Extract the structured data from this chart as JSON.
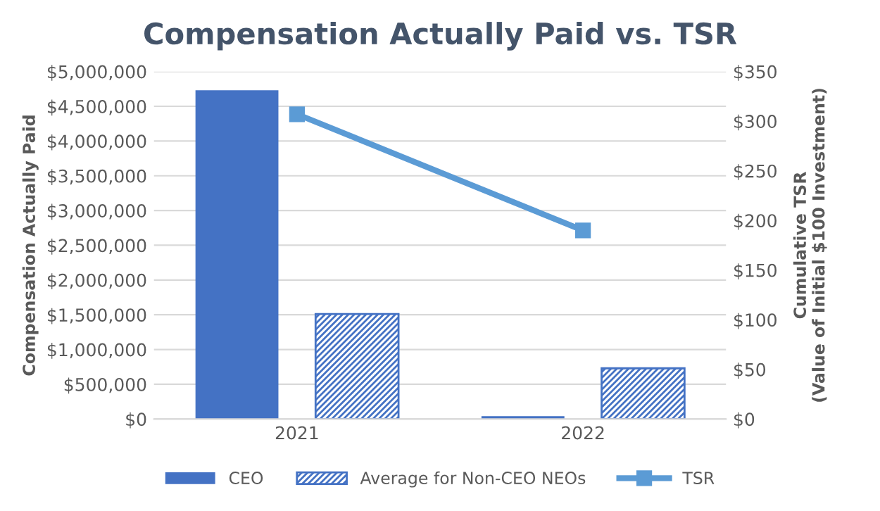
{
  "chart_data": {
    "type": "bar",
    "title": "Compensation Actually Paid vs. TSR",
    "ylabel": "Compensation Actually Paid",
    "y2label": "Cumulative TSR\n(Value of Initial $100 Investment)",
    "categories": [
      "2021",
      "2022"
    ],
    "series": [
      {
        "name": "CEO",
        "color": "#4472c4",
        "values": [
          4730000,
          40000
        ]
      },
      {
        "name": "Average for Non-CEO NEOs",
        "color": "#4472c4",
        "values": [
          1510000,
          730000
        ]
      },
      {
        "name": "TSR",
        "type": "line",
        "axis": "y2",
        "color": "#5b9bd5",
        "values": [
          307,
          190
        ],
        "marker": "square"
      }
    ],
    "ylim": [
      0,
      5000000
    ],
    "yticks": [
      {
        "value": 0,
        "label": "$0"
      },
      {
        "value": 500000,
        "label": "$500,000"
      },
      {
        "value": 1000000,
        "label": "$1,000,000"
      },
      {
        "value": 1500000,
        "label": "$1,500,000"
      },
      {
        "value": 2000000,
        "label": "$2,000,000"
      },
      {
        "value": 2500000,
        "label": "$2,500,000"
      },
      {
        "value": 3000000,
        "label": "$3,000,000"
      },
      {
        "value": 3500000,
        "label": "$3,500,000"
      },
      {
        "value": 4000000,
        "label": "$4,000,000"
      },
      {
        "value": 4500000,
        "label": "$4,500,000"
      },
      {
        "value": 5000000,
        "label": "$5,000,000"
      }
    ],
    "y2lim": [
      0,
      350
    ],
    "y2ticks": [
      {
        "value": 0,
        "label": "$0"
      },
      {
        "value": 50,
        "label": "$50"
      },
      {
        "value": 100,
        "label": "$100"
      },
      {
        "value": 150,
        "label": "$150"
      },
      {
        "value": 200,
        "label": "$200"
      },
      {
        "value": 250,
        "label": "$250"
      },
      {
        "value": 300,
        "label": "$300"
      },
      {
        "value": 350,
        "label": "$350"
      }
    ],
    "grid": "y",
    "legend": "bottom"
  }
}
